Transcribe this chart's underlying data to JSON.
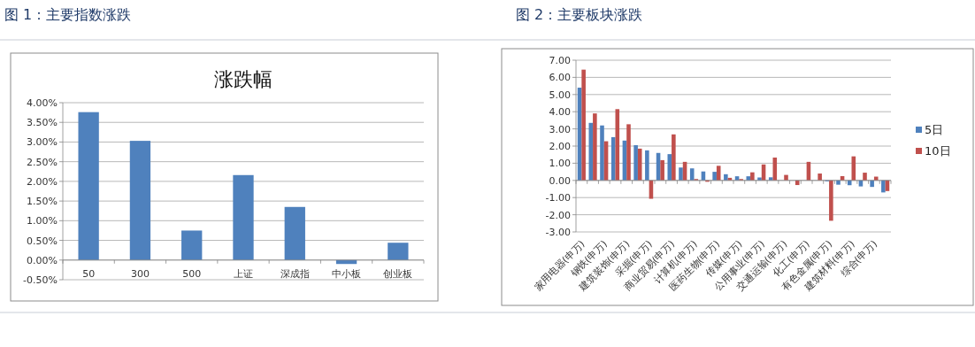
{
  "chart_data": [
    {
      "type": "bar",
      "title": "涨跌幅",
      "annotations": [
        "图 1：主要指数涨跌"
      ],
      "categories": [
        "50",
        "300",
        "500",
        "上证",
        "深成指",
        "中小板",
        "创业板"
      ],
      "values": [
        3.76,
        3.03,
        0.75,
        2.16,
        1.35,
        -0.1,
        0.44
      ],
      "color": "#4f81bd",
      "ylim": [
        -0.5,
        4
      ],
      "yticks": [
        {
          "value": -0.5,
          "label": "-0.50%"
        },
        {
          "value": 0,
          "label": "0.00%"
        },
        {
          "value": 0.5,
          "label": "0.50%"
        },
        {
          "value": 1,
          "label": "1.00%"
        },
        {
          "value": 1.5,
          "label": "1.50%"
        },
        {
          "value": 2,
          "label": "2.00%"
        },
        {
          "value": 2.5,
          "label": "2.50%"
        },
        {
          "value": 3,
          "label": "3.00%"
        },
        {
          "value": 3.5,
          "label": "3.50%"
        },
        {
          "value": 4,
          "label": "4.00%"
        }
      ],
      "grid": "y"
    },
    {
      "type": "bar",
      "annotations": [
        "图 2：主要板块涨跌"
      ],
      "categories": [
        "家用电器(申万)",
        null,
        "钢铁(申万)",
        null,
        "建筑装饰(申万)",
        null,
        "采掘(申万)",
        null,
        "商业贸易(申万)",
        null,
        "计算机(申万)",
        null,
        "医药生物(申万)",
        null,
        "传媒(申万)",
        null,
        "公用事业(申万)",
        null,
        "交通运输(申万)",
        null,
        "化工(申万)",
        null,
        "有色金属(申万)",
        null,
        "建筑材料(申万)",
        null,
        "综合(申万)",
        null
      ],
      "series": [
        {
          "name": "5日",
          "color": "#4f81bd",
          "values": [
            5.4,
            3.35,
            3.2,
            2.52,
            2.32,
            2.05,
            1.75,
            1.6,
            1.53,
            0.75,
            0.7,
            0.52,
            0.5,
            0.36,
            0.24,
            0.24,
            0.17,
            0.18,
            null,
            null,
            null,
            null,
            -0.05,
            -0.25,
            -0.28,
            -0.35,
            -0.38,
            -0.7
          ]
        },
        {
          "name": "10日",
          "color": "#c0504d",
          "values": [
            6.45,
            3.9,
            2.28,
            4.15,
            3.27,
            1.85,
            -1.07,
            1.18,
            2.68,
            1.08,
            0.08,
            -0.08,
            0.85,
            0.15,
            0.08,
            0.47,
            0.93,
            1.33,
            0.32,
            -0.27,
            1.08,
            0.4,
            -2.35,
            0.25,
            1.4,
            0.45,
            0.22,
            -0.62
          ]
        }
      ],
      "ylim": [
        -3,
        7
      ],
      "yticks": [
        {
          "value": -3,
          "label": "-3.00"
        },
        {
          "value": -2,
          "label": "-2.00"
        },
        {
          "value": -1,
          "label": "-1.00"
        },
        {
          "value": 0,
          "label": "0.00"
        },
        {
          "value": 1,
          "label": "1.00"
        },
        {
          "value": 2,
          "label": "2.00"
        },
        {
          "value": 3,
          "label": "3.00"
        },
        {
          "value": 4,
          "label": "4.00"
        },
        {
          "value": 5,
          "label": "5.00"
        },
        {
          "value": 6,
          "label": "6.00"
        },
        {
          "value": 7,
          "label": "7.00"
        }
      ],
      "grid": "y",
      "legend": "right"
    }
  ]
}
